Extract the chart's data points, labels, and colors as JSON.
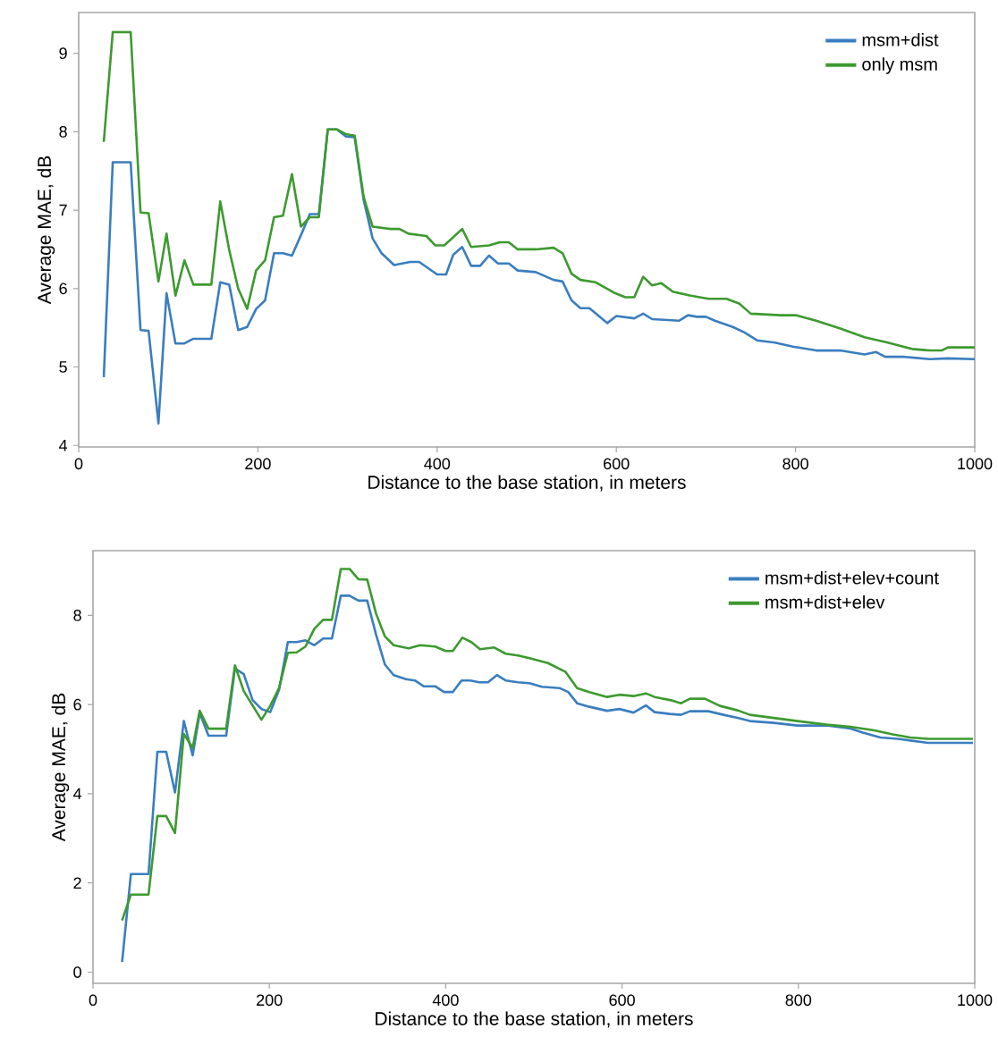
{
  "chart_data": [
    {
      "type": "line",
      "xlabel": "Distance to the base station, in meters",
      "ylabel": "Average MAE, dB",
      "xlim": [
        0,
        1000
      ],
      "ylim": [
        3.98,
        9.52
      ],
      "xticks": [
        0,
        200,
        400,
        600,
        800,
        1000
      ],
      "yticks": [
        4,
        5,
        6,
        7,
        8,
        9
      ],
      "legend": "top right",
      "grid": false,
      "marker": "none",
      "line_style": "solid",
      "series": [
        {
          "name": "msm+dist",
          "color": "#3a7ebf",
          "x": [
            28,
            38,
            58,
            69,
            78,
            89,
            98,
            108,
            118,
            128,
            148,
            158,
            168,
            178,
            188,
            198,
            208,
            218,
            228,
            238,
            248,
            258,
            268,
            278,
            288,
            298,
            308,
            318,
            328,
            338,
            352,
            370,
            380,
            400,
            410,
            418,
            428,
            438,
            448,
            458,
            468,
            480,
            490,
            510,
            530,
            540,
            550,
            560,
            570,
            590,
            600,
            620,
            630,
            640,
            670,
            680,
            690,
            700,
            710,
            730,
            743,
            757,
            777,
            797,
            823,
            850,
            877,
            890,
            900,
            920,
            950,
            970,
            1000
          ],
          "values": [
            4.87,
            7.61,
            7.61,
            5.47,
            5.46,
            4.28,
            5.94,
            5.3,
            5.3,
            5.36,
            5.36,
            6.08,
            6.05,
            5.47,
            5.51,
            5.74,
            5.85,
            6.45,
            6.45,
            6.42,
            6.68,
            6.95,
            6.95,
            8.03,
            8.03,
            7.94,
            7.93,
            7.13,
            6.64,
            6.45,
            6.3,
            6.34,
            6.34,
            6.18,
            6.18,
            6.43,
            6.53,
            6.29,
            6.29,
            6.42,
            6.32,
            6.32,
            6.23,
            6.21,
            6.11,
            6.09,
            5.85,
            5.75,
            5.75,
            5.56,
            5.65,
            5.62,
            5.68,
            5.61,
            5.59,
            5.66,
            5.64,
            5.64,
            5.59,
            5.51,
            5.44,
            5.34,
            5.31,
            5.26,
            5.21,
            5.21,
            5.16,
            5.19,
            5.13,
            5.13,
            5.1,
            5.11,
            5.1
          ]
        },
        {
          "name": "only msm",
          "color": "#3d9a2f",
          "x": [
            28,
            38,
            58,
            69,
            78,
            89,
            98,
            108,
            118,
            128,
            148,
            158,
            168,
            178,
            188,
            198,
            208,
            218,
            228,
            238,
            248,
            258,
            268,
            278,
            288,
            298,
            308,
            318,
            328,
            348,
            358,
            368,
            388,
            398,
            408,
            428,
            438,
            458,
            470,
            480,
            490,
            510,
            530,
            540,
            550,
            560,
            577,
            597,
            610,
            620,
            630,
            640,
            650,
            663,
            683,
            703,
            723,
            737,
            750,
            783,
            800,
            823,
            850,
            877,
            903,
            930,
            950,
            963,
            970,
            1000
          ],
          "values": [
            7.87,
            9.27,
            9.27,
            6.97,
            6.96,
            6.09,
            6.7,
            5.91,
            6.36,
            6.05,
            6.05,
            7.11,
            6.49,
            6.0,
            5.74,
            6.23,
            6.36,
            6.91,
            6.93,
            7.46,
            6.79,
            6.91,
            6.91,
            8.03,
            8.03,
            7.97,
            7.95,
            7.17,
            6.79,
            6.76,
            6.76,
            6.7,
            6.67,
            6.55,
            6.55,
            6.76,
            6.53,
            6.55,
            6.59,
            6.59,
            6.5,
            6.5,
            6.52,
            6.45,
            6.19,
            6.11,
            6.08,
            5.95,
            5.89,
            5.89,
            6.15,
            6.04,
            6.07,
            5.96,
            5.91,
            5.87,
            5.87,
            5.81,
            5.68,
            5.66,
            5.66,
            5.59,
            5.49,
            5.38,
            5.31,
            5.23,
            5.21,
            5.21,
            5.25,
            5.25
          ]
        }
      ]
    },
    {
      "type": "line",
      "xlabel": "Distance to the base station, in meters",
      "ylabel": "Average MAE, dB",
      "xlim": [
        0,
        1000
      ],
      "ylim": [
        -0.25,
        9.45
      ],
      "xticks": [
        0,
        200,
        400,
        600,
        800,
        1000
      ],
      "yticks": [
        0,
        2,
        4,
        6,
        8
      ],
      "legend": "top right",
      "grid": false,
      "marker": "none",
      "line_style": "solid",
      "series": [
        {
          "name": "msm+dist+elev+count",
          "color": "#3a7ebf",
          "x": [
            33,
            43,
            63,
            73,
            83,
            93,
            103,
            113,
            121,
            131,
            151,
            161,
            171,
            181,
            191,
            201,
            211,
            221,
            231,
            241,
            251,
            261,
            271,
            281,
            291,
            301,
            311,
            321,
            331,
            341,
            355,
            365,
            375,
            388,
            398,
            408,
            418,
            428,
            438,
            448,
            458,
            468,
            482,
            495,
            509,
            529,
            539,
            549,
            563,
            583,
            597,
            613,
            627,
            637,
            654,
            667,
            677,
            698,
            715,
            731,
            745,
            772,
            799,
            832,
            859,
            873,
            893,
            913,
            947,
            998
          ],
          "values": [
            0.23,
            2.2,
            2.2,
            4.94,
            4.94,
            4.03,
            5.63,
            4.86,
            5.81,
            5.3,
            5.3,
            6.81,
            6.68,
            6.1,
            5.9,
            5.83,
            6.33,
            7.4,
            7.4,
            7.44,
            7.33,
            7.48,
            7.48,
            8.44,
            8.44,
            8.33,
            8.33,
            7.57,
            6.9,
            6.66,
            6.57,
            6.54,
            6.41,
            6.41,
            6.28,
            6.28,
            6.54,
            6.54,
            6.5,
            6.5,
            6.66,
            6.54,
            6.5,
            6.48,
            6.4,
            6.37,
            6.28,
            6.03,
            5.95,
            5.86,
            5.9,
            5.82,
            5.98,
            5.83,
            5.79,
            5.77,
            5.85,
            5.85,
            5.77,
            5.7,
            5.63,
            5.59,
            5.53,
            5.53,
            5.46,
            5.37,
            5.26,
            5.23,
            5.14,
            5.14
          ]
        },
        {
          "name": "msm+dist+elev",
          "color": "#3d9a2f",
          "x": [
            33,
            43,
            63,
            73,
            83,
            93,
            103,
            113,
            121,
            131,
            151,
            161,
            171,
            191,
            201,
            211,
            221,
            231,
            241,
            251,
            261,
            271,
            281,
            291,
            301,
            311,
            321,
            331,
            341,
            358,
            371,
            388,
            400,
            408,
            419,
            429,
            439,
            455,
            468,
            482,
            495,
            516,
            536,
            549,
            563,
            583,
            597,
            613,
            627,
            637,
            657,
            667,
            677,
            694,
            711,
            731,
            745,
            772,
            799,
            832,
            859,
            886,
            907,
            927,
            947,
            998
          ],
          "values": [
            1.16,
            1.74,
            1.74,
            3.5,
            3.5,
            3.12,
            5.34,
            5.03,
            5.86,
            5.46,
            5.46,
            6.88,
            6.3,
            5.66,
            5.97,
            6.37,
            7.16,
            7.17,
            7.3,
            7.7,
            7.9,
            7.9,
            9.04,
            9.04,
            8.81,
            8.8,
            8.04,
            7.53,
            7.33,
            7.26,
            7.33,
            7.3,
            7.2,
            7.2,
            7.5,
            7.4,
            7.24,
            7.28,
            7.14,
            7.1,
            7.04,
            6.93,
            6.73,
            6.37,
            6.28,
            6.17,
            6.22,
            6.19,
            6.25,
            6.17,
            6.09,
            6.03,
            6.13,
            6.13,
            5.97,
            5.87,
            5.77,
            5.7,
            5.63,
            5.55,
            5.5,
            5.42,
            5.33,
            5.26,
            5.23,
            5.23
          ]
        }
      ]
    }
  ]
}
